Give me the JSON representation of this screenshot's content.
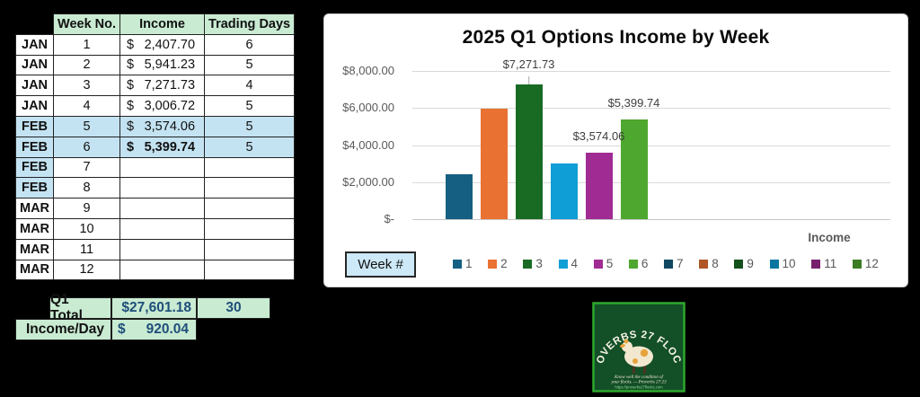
{
  "table": {
    "headers": [
      "Week No.",
      "Income",
      "Trading Days"
    ],
    "rows": [
      {
        "month": "JAN",
        "week": "1",
        "sym": "$",
        "income": "2,407.70",
        "days": "6",
        "month_blue": false,
        "row_blue": false,
        "bold": false
      },
      {
        "month": "JAN",
        "week": "2",
        "sym": "$",
        "income": "5,941.23",
        "days": "5",
        "month_blue": false,
        "row_blue": false,
        "bold": false
      },
      {
        "month": "JAN",
        "week": "3",
        "sym": "$",
        "income": "7,271.73",
        "days": "4",
        "month_blue": false,
        "row_blue": false,
        "bold": false
      },
      {
        "month": "JAN",
        "week": "4",
        "sym": "$",
        "income": "3,006.72",
        "days": "5",
        "month_blue": false,
        "row_blue": false,
        "bold": false
      },
      {
        "month": "FEB",
        "week": "5",
        "sym": "$",
        "income": "3,574.06",
        "days": "5",
        "month_blue": true,
        "row_blue": true,
        "bold": false
      },
      {
        "month": "FEB",
        "week": "6",
        "sym": "$",
        "income": "5,399.74",
        "days": "5",
        "month_blue": true,
        "row_blue": true,
        "bold": true
      },
      {
        "month": "FEB",
        "week": "7",
        "sym": "",
        "income": "",
        "days": "",
        "month_blue": true,
        "row_blue": false,
        "bold": false
      },
      {
        "month": "FEB",
        "week": "8",
        "sym": "",
        "income": "",
        "days": "",
        "month_blue": true,
        "row_blue": false,
        "bold": false
      },
      {
        "month": "MAR",
        "week": "9",
        "sym": "",
        "income": "",
        "days": "",
        "month_blue": false,
        "row_blue": false,
        "bold": false
      },
      {
        "month": "MAR",
        "week": "10",
        "sym": "",
        "income": "",
        "days": "",
        "month_blue": false,
        "row_blue": false,
        "bold": false
      },
      {
        "month": "MAR",
        "week": "11",
        "sym": "",
        "income": "",
        "days": "",
        "month_blue": false,
        "row_blue": false,
        "bold": false
      },
      {
        "month": "MAR",
        "week": "12",
        "sym": "",
        "income": "",
        "days": "",
        "month_blue": false,
        "row_blue": false,
        "bold": false
      }
    ],
    "summary": {
      "row1": {
        "label": "Q1 Total",
        "value": "$27,601.18",
        "days": "30"
      },
      "row2": {
        "label": "Income/Day",
        "sym": "$",
        "value": "920.04"
      }
    }
  },
  "chart_data": {
    "type": "bar",
    "title": "2025 Q1 Options Income by Week",
    "categories": [
      "Income"
    ],
    "xlabel": "Income",
    "ylim": [
      0,
      8000
    ],
    "grid": true,
    "legend_position": "bottom",
    "legend_prefix_label": "Week #",
    "y_ticks": [
      "$8,000.00",
      "$6,000.00",
      "$4,000.00",
      "$2,000.00",
      "$-"
    ],
    "series": [
      {
        "name": "1",
        "color": "#156082",
        "values": [
          2407.7
        ]
      },
      {
        "name": "2",
        "color": "#E97132",
        "values": [
          5941.23
        ]
      },
      {
        "name": "3",
        "color": "#196B24",
        "values": [
          7271.73
        ]
      },
      {
        "name": "4",
        "color": "#0F9ED5",
        "values": [
          3006.72
        ]
      },
      {
        "name": "5",
        "color": "#A02B93",
        "values": [
          3574.06
        ]
      },
      {
        "name": "6",
        "color": "#4EA72E",
        "values": [
          5399.74
        ]
      },
      {
        "name": "7",
        "color": "#104861",
        "values": [
          null
        ]
      },
      {
        "name": "8",
        "color": "#AF5526",
        "values": [
          null
        ]
      },
      {
        "name": "9",
        "color": "#13501B",
        "values": [
          null
        ]
      },
      {
        "name": "10",
        "color": "#0B77A0",
        "values": [
          null
        ]
      },
      {
        "name": "11",
        "color": "#78206E",
        "values": [
          null
        ]
      },
      {
        "name": "12",
        "color": "#3B7D23",
        "values": [
          null
        ]
      }
    ],
    "data_labels": [
      {
        "series_index": 2,
        "text": "$7,271.73",
        "gap": 15,
        "leader": 9
      },
      {
        "series_index": 4,
        "text": "$3,574.06",
        "gap": 11,
        "leader": 0
      },
      {
        "series_index": 5,
        "text": "$5,399.74",
        "gap": 11,
        "leader": 0
      }
    ]
  },
  "logo": {
    "arc_text": "PROVERBS 27 FLOCKS",
    "tagline_1": "Know well the condition of",
    "tagline_2": "your flocks.  — Proverbs 27:23",
    "url": "https://proverbs27flocks.com",
    "bg": "#134F27",
    "border": "#2DA82D"
  },
  "colors": {
    "header_green": "#C9EBD2",
    "feb_blue": "#C4E3F2",
    "summary_value_navy": "#1F4E79",
    "gridline_gray": "#D9D9D9",
    "axis_text_gray": "#595959"
  }
}
